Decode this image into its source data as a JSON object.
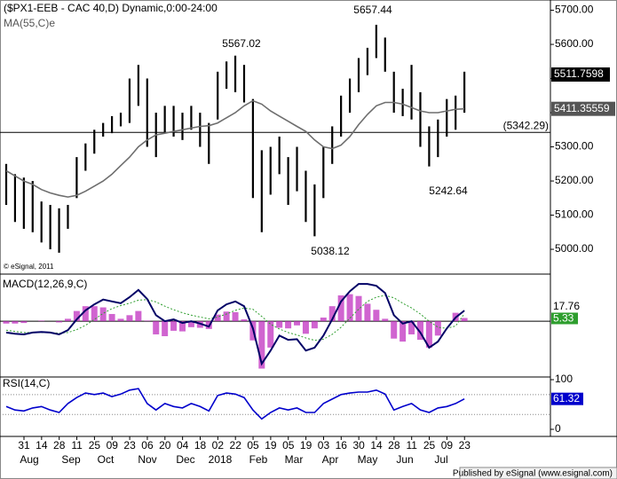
{
  "chart_data": {
    "type": "ohlc",
    "title": "($PX1-EEB - CAC 40,D) Dynamic,0:00-24:00",
    "study_label": "MA(55,C)e",
    "copyright": "© eSignal, 2011",
    "bar_color": "#000000",
    "ma_color": "#6e6e6e",
    "highs": [
      5250,
      5220,
      5210,
      5200,
      5140,
      5130,
      5120,
      5130,
      5270,
      5310,
      5350,
      5370,
      5390,
      5400,
      5500,
      5540,
      5500,
      5400,
      5420,
      5420,
      5400,
      5420,
      5400,
      5370,
      5520,
      5550,
      5567.02,
      5540,
      5440,
      5290,
      5300,
      5330,
      5270,
      5300,
      5230,
      5190,
      5300,
      5360,
      5450,
      5500,
      5560,
      5590,
      5657.44,
      5620,
      5520,
      5470,
      5540,
      5460,
      5360,
      5380,
      5440,
      5450,
      5520
    ],
    "lows": [
      5130,
      5080,
      5060,
      5050,
      5020,
      5000,
      4990,
      5060,
      5150,
      5230,
      5280,
      5330,
      5340,
      5360,
      5370,
      5420,
      5300,
      5270,
      5340,
      5330,
      5320,
      5350,
      5300,
      5250,
      5380,
      5470,
      5460,
      5430,
      5150,
      5050,
      5160,
      5220,
      5130,
      5170,
      5080,
      5038.12,
      5150,
      5250,
      5330,
      5400,
      5460,
      5510,
      5560,
      5520,
      5400,
      5390,
      5380,
      5300,
      5242.64,
      5270,
      5330,
      5350,
      5400
    ],
    "ma": [
      5230,
      5215,
      5200,
      5190,
      5175,
      5165,
      5158,
      5153,
      5158,
      5170,
      5185,
      5200,
      5220,
      5245,
      5270,
      5300,
      5320,
      5335,
      5340,
      5345,
      5350,
      5355,
      5360,
      5362,
      5370,
      5385,
      5400,
      5420,
      5435,
      5425,
      5405,
      5390,
      5375,
      5360,
      5345,
      5320,
      5300,
      5295,
      5305,
      5330,
      5365,
      5395,
      5420,
      5430,
      5430,
      5425,
      5415,
      5405,
      5400,
      5400,
      5405,
      5410,
      5411.35559
    ],
    "last_price": 5511.7598,
    "ref_line": {
      "value": 5342.29,
      "label": "(5342.29)"
    },
    "annotations": [
      "5657.44",
      "5567.02",
      "5242.64",
      "5038.12"
    ],
    "ylim": [
      4930,
      5730
    ],
    "yticks": [
      {
        "value": 5000,
        "label": "5000.00"
      },
      {
        "value": 5100,
        "label": "5100.00"
      },
      {
        "value": 5200,
        "label": "5200.00"
      },
      {
        "value": 5300,
        "label": "5300.00"
      },
      {
        "value": 5400,
        "label": "5400.00"
      },
      {
        "value": 5500,
        "label": "5500.00"
      },
      {
        "value": 5600,
        "label": "5600.00"
      },
      {
        "value": 5700,
        "label": "5700.00"
      }
    ],
    "macd": {
      "label": "MACD(12,26,9,C)",
      "ylim": [
        -93,
        77
      ],
      "series": [
        {
          "name": "MACD",
          "color": "#000066",
          "values": [
            -19,
            -21,
            -22,
            -19,
            -18,
            -19,
            -22,
            -15,
            3,
            18,
            28,
            36,
            33,
            30,
            40,
            52,
            37,
            10,
            0,
            3,
            -3,
            0,
            -4,
            -9,
            18,
            28,
            33,
            25,
            -12,
            -71,
            -49,
            -24,
            -31,
            -30,
            -49,
            -44,
            -24,
            3,
            33,
            50,
            62,
            62,
            59,
            47,
            10,
            -4,
            0,
            -19,
            -44,
            -34,
            -12,
            6,
            17.76
          ]
        },
        {
          "name": "Signal",
          "color": "#2e9e2e",
          "values": [
            -15,
            -17,
            -19,
            -19,
            -19,
            -19,
            -20,
            -19,
            -14,
            -7,
            3,
            13,
            21,
            26,
            30,
            35,
            36,
            32,
            25,
            19,
            14,
            10,
            7,
            4,
            7,
            12,
            18,
            22,
            20,
            8,
            -5,
            -13,
            -19,
            -23,
            -28,
            -32,
            -30,
            -22,
            -10,
            5,
            20,
            33,
            40,
            43,
            39,
            30,
            22,
            12,
            0,
            -10,
            -12,
            -8,
            12.43
          ]
        },
        {
          "name": "Histogram",
          "color": "#c030c0",
          "values": [
            -4,
            -4,
            -3,
            0,
            1,
            0,
            -2,
            4,
            17,
            25,
            25,
            23,
            12,
            4,
            10,
            17,
            1,
            -22,
            -25,
            -16,
            -17,
            -10,
            -11,
            -13,
            11,
            16,
            15,
            3,
            -32,
            -79,
            -44,
            -11,
            -12,
            -7,
            -21,
            -12,
            6,
            25,
            43,
            45,
            42,
            29,
            19,
            4,
            -29,
            -34,
            -22,
            -31,
            -44,
            -24,
            0,
            14,
            5.33
          ]
        }
      ]
    },
    "rsi": {
      "label": "RSI(14,C)",
      "color": "#0000cc",
      "ylim": [
        -10.7,
        105.4
      ],
      "yticks": [
        0,
        100
      ],
      "levels": [
        30,
        70
      ],
      "values": [
        46,
        39,
        37,
        43,
        46,
        39,
        34,
        52,
        64,
        73,
        70,
        73,
        66,
        71,
        79,
        82,
        52,
        39,
        52,
        46,
        43,
        52,
        46,
        37,
        68,
        73,
        71,
        64,
        39,
        21,
        34,
        43,
        39,
        43,
        34,
        34,
        52,
        61,
        70,
        73,
        75,
        75,
        79,
        71,
        39,
        46,
        52,
        39,
        34,
        43,
        46,
        52,
        61.32
      ]
    },
    "xticks": [
      "31",
      "14",
      "28",
      "11",
      "25",
      "09",
      "23",
      "06",
      "20",
      "04",
      "18",
      "02",
      "22",
      "05",
      "19",
      "05",
      "19",
      "03",
      "16",
      "30",
      "14",
      "28",
      "11",
      "25",
      "09",
      "23"
    ],
    "months": [
      "Aug",
      "Sep",
      "Oct",
      "Nov",
      "Dec",
      "2018",
      "Feb",
      "Mar",
      "Apr",
      "May",
      "Jun",
      "Jul"
    ],
    "footer": "Published by eSignal (www.esignal.com)"
  }
}
